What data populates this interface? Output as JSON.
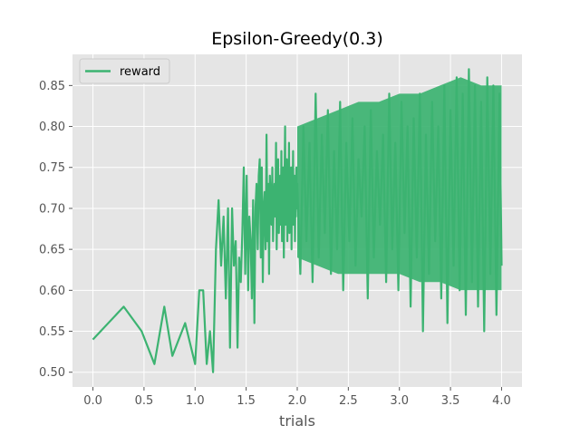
{
  "chart_data": {
    "type": "line",
    "title": "Epsilon-Greedy(0.3)",
    "xlabel": "trials",
    "ylabel": "",
    "xlim": [
      -0.2,
      4.2
    ],
    "ylim": [
      0.482,
      0.888
    ],
    "xticks": [
      0.0,
      0.5,
      1.0,
      1.5,
      2.0,
      2.5,
      3.0,
      3.5,
      4.0
    ],
    "xtick_labels": [
      "0.0",
      "0.5",
      "1.0",
      "1.5",
      "2.0",
      "2.5",
      "3.0",
      "3.5",
      "4.0"
    ],
    "yticks": [
      0.5,
      0.55,
      0.6,
      0.65,
      0.7,
      0.75,
      0.8,
      0.85
    ],
    "ytick_labels": [
      "0.50",
      "0.55",
      "0.60",
      "0.65",
      "0.70",
      "0.75",
      "0.80",
      "0.85"
    ],
    "grid": true,
    "legend_position": "top-left",
    "series": [
      {
        "name": "reward",
        "color": "#3cb371",
        "x": [
          0.0,
          0.301,
          0.477,
          0.602,
          0.699,
          0.778,
          0.903,
          1.0,
          1.041,
          1.079,
          1.114,
          1.146,
          1.176,
          1.204,
          1.23,
          1.255,
          1.279,
          1.301,
          1.322,
          1.342,
          1.362,
          1.38,
          1.398,
          1.415,
          1.431,
          1.447,
          1.462,
          1.477,
          1.491,
          1.505,
          1.519,
          1.531,
          1.544,
          1.556,
          1.568,
          1.58,
          1.591,
          1.602,
          1.613,
          1.623,
          1.633,
          1.643,
          1.653,
          1.663,
          1.672,
          1.681,
          1.69,
          1.699,
          1.708,
          1.716,
          1.724,
          1.732,
          1.74,
          1.748,
          1.756,
          1.763,
          1.771,
          1.778,
          1.785,
          1.792,
          1.799,
          1.806,
          1.813,
          1.82,
          1.826,
          1.833,
          1.839,
          1.845,
          1.851,
          1.857,
          1.863,
          1.869,
          1.875,
          1.881,
          1.886,
          1.892,
          1.898,
          1.903,
          1.908,
          1.914,
          1.919,
          1.924,
          1.929,
          1.934,
          1.94,
          1.944,
          1.949,
          1.954,
          1.959,
          1.964,
          1.968,
          1.973,
          1.978,
          1.982,
          1.987,
          1.991,
          1.996,
          2.0,
          2.03,
          2.06,
          2.09,
          2.12,
          2.15,
          2.18,
          2.21,
          2.24,
          2.27,
          2.3,
          2.33,
          2.36,
          2.39,
          2.42,
          2.45,
          2.48,
          2.51,
          2.54,
          2.57,
          2.6,
          2.63,
          2.66,
          2.69,
          2.72,
          2.75,
          2.78,
          2.81,
          2.84,
          2.87,
          2.9,
          2.93,
          2.96,
          2.99,
          3.02,
          3.05,
          3.08,
          3.11,
          3.14,
          3.17,
          3.2,
          3.23,
          3.26,
          3.29,
          3.32,
          3.35,
          3.38,
          3.41,
          3.44,
          3.47,
          3.5,
          3.53,
          3.56,
          3.59,
          3.62,
          3.65,
          3.68,
          3.71,
          3.74,
          3.77,
          3.8,
          3.83,
          3.86,
          3.89,
          3.92,
          3.95,
          3.98,
          4.0
        ],
        "y": [
          0.54,
          0.58,
          0.55,
          0.51,
          0.58,
          0.52,
          0.56,
          0.51,
          0.6,
          0.6,
          0.51,
          0.55,
          0.5,
          0.65,
          0.71,
          0.63,
          0.69,
          0.59,
          0.7,
          0.53,
          0.7,
          0.63,
          0.66,
          0.53,
          0.64,
          0.61,
          0.67,
          0.75,
          0.62,
          0.74,
          0.6,
          0.69,
          0.66,
          0.59,
          0.71,
          0.56,
          0.7,
          0.73,
          0.65,
          0.74,
          0.76,
          0.64,
          0.75,
          0.61,
          0.7,
          0.72,
          0.65,
          0.79,
          0.66,
          0.73,
          0.62,
          0.74,
          0.7,
          0.68,
          0.75,
          0.66,
          0.71,
          0.73,
          0.69,
          0.78,
          0.65,
          0.72,
          0.76,
          0.67,
          0.7,
          0.74,
          0.68,
          0.77,
          0.66,
          0.72,
          0.75,
          0.64,
          0.73,
          0.8,
          0.68,
          0.71,
          0.76,
          0.66,
          0.74,
          0.7,
          0.78,
          0.67,
          0.72,
          0.69,
          0.75,
          0.65,
          0.73,
          0.7,
          0.77,
          0.68,
          0.71,
          0.74,
          0.66,
          0.72,
          0.69,
          0.75,
          0.7,
          0.73,
          0.62,
          0.8,
          0.66,
          0.78,
          0.61,
          0.84,
          0.64,
          0.79,
          0.67,
          0.82,
          0.62,
          0.77,
          0.65,
          0.83,
          0.6,
          0.78,
          0.66,
          0.81,
          0.63,
          0.76,
          0.69,
          0.8,
          0.59,
          0.82,
          0.64,
          0.77,
          0.68,
          0.79,
          0.61,
          0.84,
          0.65,
          0.78,
          0.6,
          0.83,
          0.67,
          0.8,
          0.58,
          0.81,
          0.64,
          0.84,
          0.55,
          0.79,
          0.62,
          0.83,
          0.66,
          0.8,
          0.59,
          0.85,
          0.56,
          0.82,
          0.63,
          0.86,
          0.6,
          0.84,
          0.57,
          0.87,
          0.61,
          0.85,
          0.58,
          0.83,
          0.55,
          0.86,
          0.62,
          0.85,
          0.57,
          0.84,
          0.63
        ],
        "band": {
          "x": [
            2.0,
            2.2,
            2.4,
            2.6,
            2.8,
            3.0,
            3.2,
            3.4,
            3.6,
            3.8,
            4.0
          ],
          "upper": [
            0.8,
            0.81,
            0.82,
            0.83,
            0.83,
            0.84,
            0.84,
            0.85,
            0.86,
            0.85,
            0.85
          ],
          "lower": [
            0.64,
            0.63,
            0.62,
            0.62,
            0.62,
            0.62,
            0.61,
            0.61,
            0.6,
            0.6,
            0.6
          ]
        }
      }
    ]
  }
}
